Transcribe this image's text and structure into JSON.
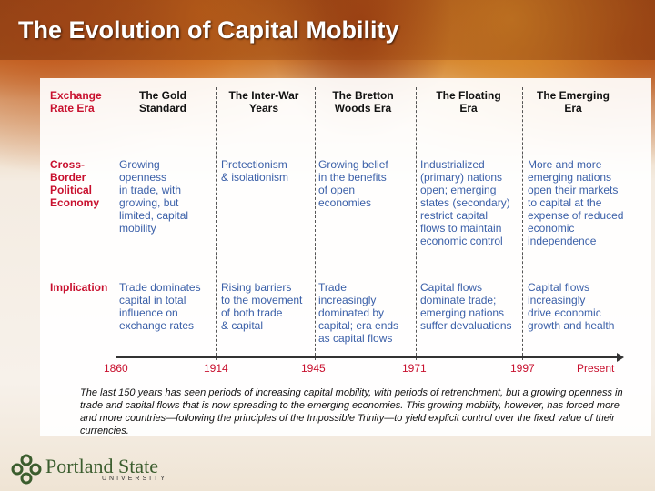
{
  "slide": {
    "title": "The Evolution of Capital Mobility"
  },
  "table": {
    "row_headers": {
      "era": [
        "Exchange",
        "Rate Era"
      ],
      "economy": [
        "Cross-",
        "Border",
        "Political",
        "Economy"
      ],
      "implication": [
        "Implication"
      ]
    },
    "columns": [
      {
        "header": [
          "The Gold",
          "Standard"
        ],
        "economy": [
          "Growing",
          "openness",
          "in trade, with",
          "growing, but",
          "limited, capital",
          "mobility"
        ],
        "implication": [
          "Trade dominates",
          "capital in total",
          "influence on",
          "exchange rates"
        ]
      },
      {
        "header": [
          "The Inter-War",
          "Years"
        ],
        "economy": [
          "Protectionism",
          "& isolationism"
        ],
        "implication": [
          "Rising barriers",
          "to the movement",
          "of both trade",
          "& capital"
        ]
      },
      {
        "header": [
          "The Bretton",
          "Woods Era"
        ],
        "economy": [
          "Growing belief",
          "in the benefits",
          "of open",
          "economies"
        ],
        "implication": [
          "Trade",
          "increasingly",
          "dominated by",
          "capital; era ends",
          "as capital flows"
        ]
      },
      {
        "header": [
          "The Floating",
          "Era"
        ],
        "economy": [
          "Industrialized",
          "(primary) nations",
          "open; emerging",
          "states (secondary)",
          "restrict capital",
          "flows to maintain",
          "economic control"
        ],
        "implication": [
          "Capital flows",
          "dominate trade;",
          "emerging nations",
          "suffer devaluations"
        ]
      },
      {
        "header": [
          "The Emerging",
          "Era"
        ],
        "economy": [
          "More and more",
          "emerging nations",
          "open their markets",
          "to capital at the",
          "expense of reduced",
          "economic",
          "independence"
        ],
        "implication": [
          "Capital flows",
          "increasingly",
          "drive economic",
          "growth and health"
        ]
      }
    ],
    "timeline": [
      "1860",
      "1914",
      "1945",
      "1971",
      "1997",
      "Present"
    ]
  },
  "caption": "The last 150 years has seen periods of increasing capital mobility, with periods of retrenchment, but a growing openness in trade and capital flows that is now spreading to the emerging economies. This growing mobility, however, has forced more and more countries—following the principles of the Impossible Trinity—to yield explicit control over the fixed value of their currencies.",
  "logo": {
    "name": "Portland State",
    "sub": "UNIVERSITY",
    "icon": "portland-state-logo-icon",
    "color": "#3b5d2e"
  },
  "colors": {
    "row_header": "#c8102e",
    "body_text": "#3a5fa8"
  }
}
